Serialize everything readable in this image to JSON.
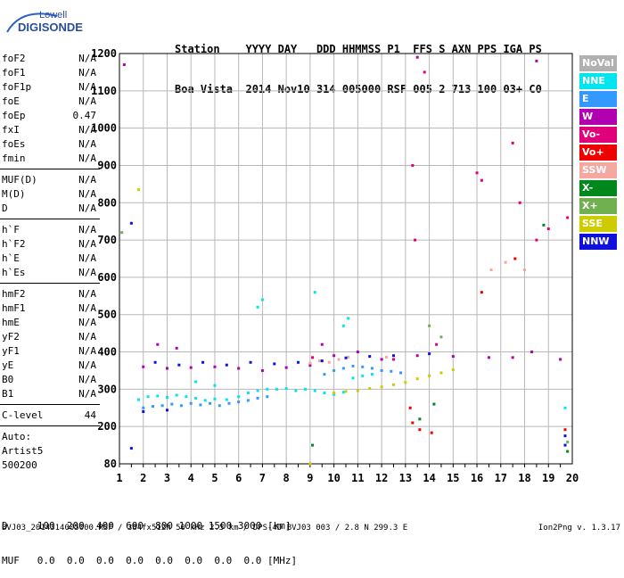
{
  "logo": {
    "line1": "Lowell",
    "line2": "DIGISONDE"
  },
  "header": {
    "labels": "Station    YYYY DAY   DDD HHMMSS P1  FFS S AXN PPS IGA PS",
    "values": "Boa Vista  2014 Nov10 314 005000 RSF 005 2 713 100 03+ C0"
  },
  "params": {
    "group1": [
      {
        "k": "foF2",
        "v": "N/A"
      },
      {
        "k": "foF1",
        "v": "N/A"
      },
      {
        "k": "foF1p",
        "v": "N/A"
      },
      {
        "k": "foE",
        "v": "N/A"
      },
      {
        "k": "foEp",
        "v": "0.47"
      },
      {
        "k": "fxI",
        "v": "N/A"
      },
      {
        "k": "foEs",
        "v": "N/A"
      },
      {
        "k": "fmin",
        "v": "N/A"
      }
    ],
    "group2": [
      {
        "k": "MUF(D)",
        "v": "N/A"
      },
      {
        "k": "M(D)",
        "v": "N/A"
      },
      {
        "k": "D",
        "v": "N/A"
      }
    ],
    "group3": [
      {
        "k": "h`F",
        "v": "N/A"
      },
      {
        "k": "h`F2",
        "v": "N/A"
      },
      {
        "k": "h`E",
        "v": "N/A"
      },
      {
        "k": "h`Es",
        "v": "N/A"
      }
    ],
    "group4": [
      {
        "k": "hmF2",
        "v": "N/A"
      },
      {
        "k": "hmF1",
        "v": "N/A"
      },
      {
        "k": "hmE",
        "v": "N/A"
      },
      {
        "k": "yF2",
        "v": "N/A"
      },
      {
        "k": "yF1",
        "v": "N/A"
      },
      {
        "k": "yE",
        "v": "N/A"
      },
      {
        "k": "B0",
        "v": "N/A"
      },
      {
        "k": "B1",
        "v": "N/A"
      }
    ],
    "clevel": {
      "k": "C-level",
      "v": "44"
    },
    "auto_label": "Auto:",
    "artist": "Artist5",
    "code": "500200"
  },
  "legend": [
    {
      "label": "NoVal",
      "color": "#b0b0b0"
    },
    {
      "label": "NNE",
      "color": "#00e5ee"
    },
    {
      "label": "E",
      "color": "#3399ff"
    },
    {
      "label": "W",
      "color": "#b000b0"
    },
    {
      "label": "Vo-",
      "color": "#e0007a"
    },
    {
      "label": "Vo+",
      "color": "#ee0000"
    },
    {
      "label": "SSW",
      "color": "#f4a8a0"
    },
    {
      "label": "X-",
      "color": "#00881c"
    },
    {
      "label": "X+",
      "color": "#70b050"
    },
    {
      "label": "SSE",
      "color": "#cccc00"
    },
    {
      "label": "NNW",
      "color": "#1010dd"
    }
  ],
  "footer": {
    "row1": "D     100  200  400  600  800 1000 1500 3000 [km]",
    "row2": "MUF   0.0  0.0  0.0  0.0  0.0  0.0  0.0  0.0 [MHz]",
    "filename": "BVJ03_2014314005000.RSF / 384fx512h 50 kHz 2.5 km / DPS-4D BVJ03 003 / 2.8 N 299.3 E",
    "version": "Ion2Png v. 1.3.17"
  },
  "chart_data": {
    "type": "scatter",
    "xlim": [
      1,
      20
    ],
    "ylim": [
      80,
      1200
    ],
    "x_ticks": [
      1,
      2,
      3,
      4,
      5,
      6,
      7,
      8,
      9,
      10,
      11,
      12,
      13,
      14,
      15,
      16,
      17,
      18,
      19,
      20
    ],
    "y_ticks": [
      80,
      200,
      300,
      400,
      500,
      600,
      700,
      800,
      900,
      1000,
      1100,
      1200
    ],
    "grid": true,
    "legend_position": "right",
    "series": [
      {
        "name": "NNE",
        "color": "#00e5ee",
        "points": [
          [
            1.8,
            272
          ],
          [
            2.2,
            280
          ],
          [
            2.6,
            282
          ],
          [
            3.0,
            278
          ],
          [
            3.4,
            284
          ],
          [
            3.8,
            280
          ],
          [
            4.2,
            276
          ],
          [
            4.6,
            270
          ],
          [
            5.0,
            274
          ],
          [
            5.5,
            272
          ],
          [
            6.0,
            280
          ],
          [
            6.4,
            290
          ],
          [
            6.8,
            296
          ],
          [
            7.2,
            300
          ],
          [
            7.6,
            300
          ],
          [
            8.0,
            302
          ],
          [
            8.4,
            296
          ],
          [
            8.8,
            300
          ],
          [
            9.2,
            296
          ],
          [
            9.6,
            290
          ],
          [
            10.0,
            286
          ],
          [
            10.4,
            292
          ],
          [
            10.8,
            330
          ],
          [
            11.2,
            336
          ],
          [
            11.6,
            340
          ],
          [
            7.0,
            540
          ],
          [
            6.8,
            520
          ],
          [
            10.4,
            470
          ],
          [
            10.6,
            490
          ],
          [
            9.2,
            560
          ],
          [
            5.0,
            310
          ],
          [
            4.2,
            320
          ],
          [
            19.7,
            250
          ]
        ]
      },
      {
        "name": "E",
        "color": "#3399ff",
        "points": [
          [
            2.0,
            250
          ],
          [
            2.4,
            254
          ],
          [
            2.8,
            256
          ],
          [
            3.2,
            260
          ],
          [
            3.6,
            256
          ],
          [
            4.0,
            262
          ],
          [
            4.4,
            258
          ],
          [
            4.8,
            262
          ],
          [
            5.2,
            256
          ],
          [
            5.6,
            262
          ],
          [
            6.0,
            266
          ],
          [
            6.4,
            270
          ],
          [
            6.8,
            276
          ],
          [
            7.2,
            280
          ],
          [
            9.6,
            340
          ],
          [
            10.0,
            350
          ],
          [
            10.4,
            356
          ],
          [
            10.8,
            362
          ],
          [
            11.2,
            360
          ],
          [
            11.6,
            356
          ],
          [
            12.0,
            350
          ],
          [
            12.4,
            348
          ],
          [
            12.8,
            344
          ]
        ]
      },
      {
        "name": "W",
        "color": "#b000b0",
        "points": [
          [
            2.0,
            360
          ],
          [
            3.0,
            356
          ],
          [
            4.0,
            358
          ],
          [
            5.0,
            360
          ],
          [
            6.0,
            356
          ],
          [
            7.0,
            350
          ],
          [
            8.0,
            358
          ],
          [
            9.0,
            364
          ],
          [
            10.0,
            390
          ],
          [
            11.0,
            400
          ],
          [
            12.0,
            380
          ],
          [
            13.5,
            390
          ],
          [
            15.0,
            388
          ],
          [
            16.5,
            385
          ],
          [
            17.5,
            385
          ],
          [
            18.3,
            400
          ],
          [
            19.5,
            380
          ],
          [
            2.6,
            420
          ],
          [
            3.4,
            410
          ],
          [
            9.5,
            420
          ],
          [
            13.5,
            1190
          ],
          [
            18.5,
            1180
          ],
          [
            1.2,
            1170
          ]
        ]
      },
      {
        "name": "Vo-",
        "color": "#e0007a",
        "points": [
          [
            13.3,
            900
          ],
          [
            13.4,
            700
          ],
          [
            13.8,
            1150
          ],
          [
            16.0,
            880
          ],
          [
            16.2,
            860
          ],
          [
            17.5,
            960
          ],
          [
            17.8,
            800
          ],
          [
            18.5,
            700
          ],
          [
            19.0,
            730
          ],
          [
            19.8,
            760
          ],
          [
            14.3,
            420
          ],
          [
            9.1,
            385
          ],
          [
            12.5,
            380
          ]
        ]
      },
      {
        "name": "Vo+",
        "color": "#ee0000",
        "points": [
          [
            13.3,
            210
          ],
          [
            13.2,
            250
          ],
          [
            13.6,
            190
          ],
          [
            14.1,
            180
          ],
          [
            19.7,
            190
          ],
          [
            16.2,
            560
          ],
          [
            17.6,
            650
          ]
        ]
      },
      {
        "name": "SSW",
        "color": "#f4a8a0",
        "points": [
          [
            9.0,
            370
          ],
          [
            9.4,
            376
          ],
          [
            9.8,
            372
          ],
          [
            10.2,
            380
          ],
          [
            10.6,
            386
          ],
          [
            12.2,
            386
          ],
          [
            16.6,
            620
          ],
          [
            17.2,
            640
          ],
          [
            18.0,
            620
          ]
        ]
      },
      {
        "name": "X-",
        "color": "#00881c",
        "points": [
          [
            9.1,
            140
          ],
          [
            13.6,
            220
          ],
          [
            14.2,
            260
          ],
          [
            19.8,
            120
          ],
          [
            18.8,
            740
          ]
        ]
      },
      {
        "name": "X+",
        "color": "#70b050",
        "points": [
          [
            1.1,
            720
          ],
          [
            14.0,
            470
          ],
          [
            14.5,
            440
          ],
          [
            19.8,
            150
          ]
        ]
      },
      {
        "name": "SSE",
        "color": "#cccc00",
        "points": [
          [
            10.0,
            290
          ],
          [
            10.5,
            294
          ],
          [
            11.0,
            296
          ],
          [
            11.5,
            302
          ],
          [
            12.0,
            306
          ],
          [
            12.5,
            312
          ],
          [
            13.0,
            318
          ],
          [
            13.5,
            328
          ],
          [
            14.0,
            336
          ],
          [
            14.5,
            344
          ],
          [
            15.0,
            352
          ],
          [
            9.0,
            80
          ],
          [
            1.8,
            835
          ]
        ]
      },
      {
        "name": "NNW",
        "color": "#1010dd",
        "points": [
          [
            1.5,
            745
          ],
          [
            1.5,
            130
          ],
          [
            2.5,
            372
          ],
          [
            3.5,
            365
          ],
          [
            4.5,
            372
          ],
          [
            5.5,
            365
          ],
          [
            6.5,
            372
          ],
          [
            7.5,
            368
          ],
          [
            8.5,
            372
          ],
          [
            9.5,
            376
          ],
          [
            10.5,
            384
          ],
          [
            11.5,
            388
          ],
          [
            12.5,
            390
          ],
          [
            14.0,
            395
          ],
          [
            19.7,
            140
          ],
          [
            19.7,
            170
          ],
          [
            2.0,
            240
          ],
          [
            3.0,
            244
          ]
        ]
      }
    ]
  }
}
